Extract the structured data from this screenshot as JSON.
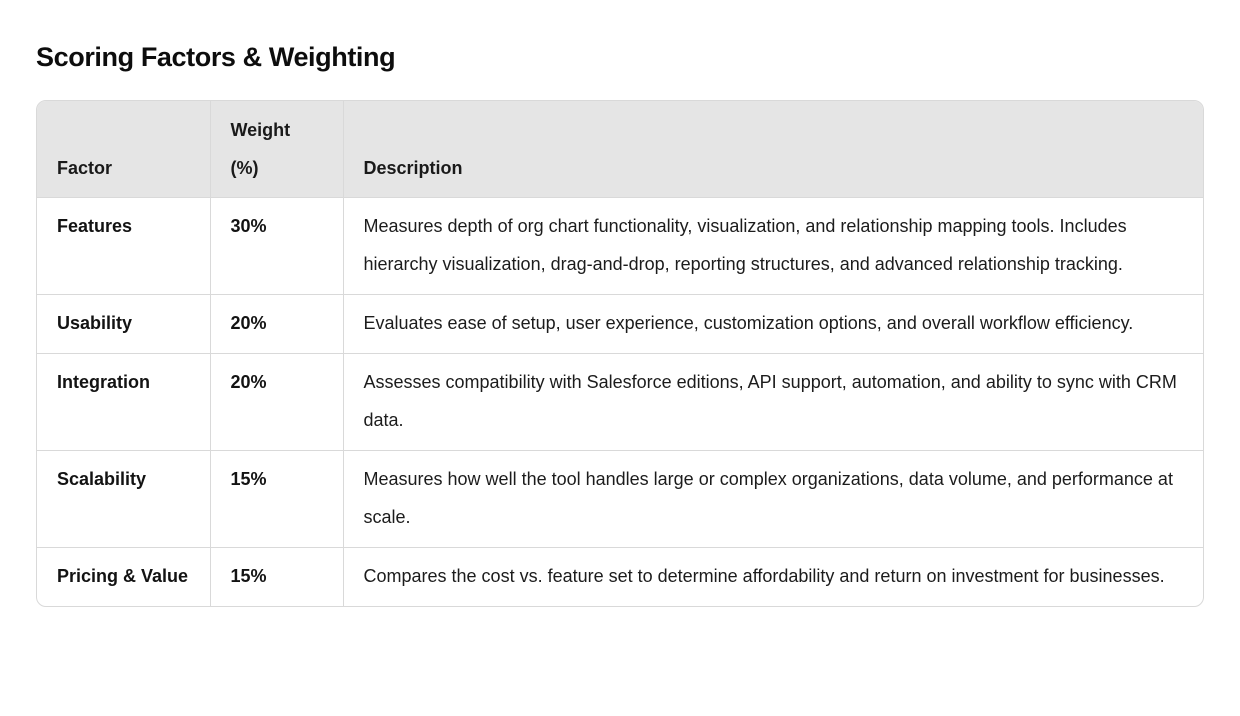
{
  "page": {
    "title": "Scoring Factors & Weighting"
  },
  "colors": {
    "header_bg": "#e5e5e5",
    "table_border": "#d9d9d9",
    "text": "#141414"
  },
  "table": {
    "columns": [
      "Factor",
      "Weight (%)",
      "Description"
    ],
    "rows": [
      {
        "factor": "Features",
        "weight": "30%",
        "description": "Measures depth of org chart functionality, visualization, and relationship mapping tools. Includes hierarchy visualization, drag-and-drop, reporting structures, and advanced relationship tracking."
      },
      {
        "factor": "Usability",
        "weight": "20%",
        "description": "Evaluates ease of setup, user experience, customization options, and overall workflow efficiency."
      },
      {
        "factor": "Integration",
        "weight": "20%",
        "description": "Assesses compatibility with Salesforce editions, API support, automation, and ability to sync with CRM data."
      },
      {
        "factor": "Scalability",
        "weight": "15%",
        "description": "Measures how well the tool handles large or complex organizations, data volume, and performance at scale."
      },
      {
        "factor": "Pricing & Value",
        "weight": "15%",
        "description": "Compares the cost vs. feature set to determine affordability and return on investment for businesses."
      }
    ]
  }
}
